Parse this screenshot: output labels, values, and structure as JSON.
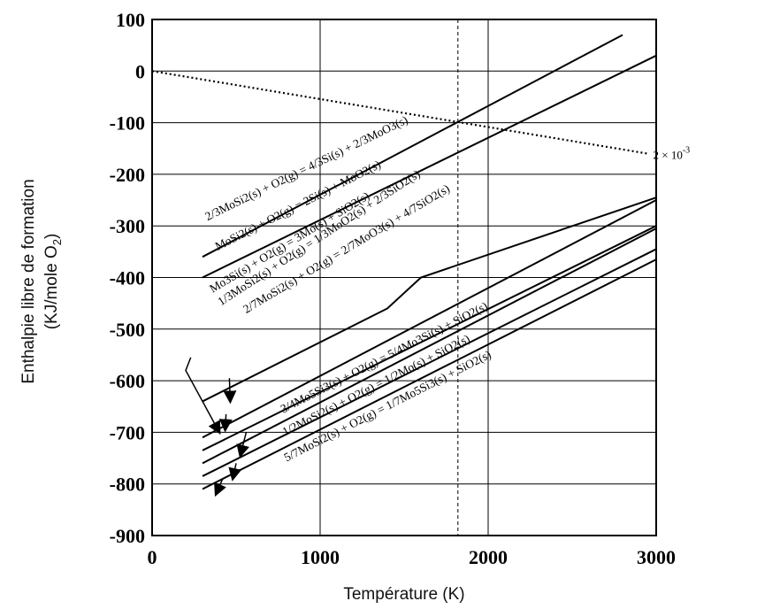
{
  "chart_data": {
    "type": "line",
    "title": "",
    "xlabel": "Température (K)",
    "ylabel_line1": "Enthalpie libre de formation",
    "ylabel_line2_prefix": "(KJ/mole O",
    "ylabel_line2_sub": "2",
    "ylabel_line2_suffix": ")",
    "xlim": [
      0,
      3000
    ],
    "ylim": [
      -900,
      100
    ],
    "xticks": [
      0,
      1000,
      2000,
      3000
    ],
    "yticks": [
      100,
      0,
      -100,
      -200,
      -300,
      -400,
      -500,
      -600,
      -700,
      -800,
      -900
    ],
    "grid": true,
    "vline_x": 1820,
    "dotted_line": {
      "label": "2 × 10",
      "label_exp": "-3",
      "points": [
        [
          0,
          0
        ],
        [
          2950,
          -160
        ]
      ]
    },
    "series": [
      {
        "name": "2/3MoSi2(s) + O2(g) = 4/3Si(s) + 2/3MoO3(s)",
        "points": [
          [
            300,
            -360
          ],
          [
            2800,
            70
          ]
        ]
      },
      {
        "name": "MoSi2(s) + O2(g) = 2Si(s) + MoO2(s)",
        "points": [
          [
            300,
            -400
          ],
          [
            3000,
            30
          ]
        ]
      },
      {
        "name": "Mo3Si(s) + O2(g) = 3Mo(s) + SiO2(s)",
        "points": [
          [
            300,
            -640
          ],
          [
            1400,
            -460
          ],
          [
            1600,
            -400
          ],
          [
            3000,
            -245
          ]
        ]
      },
      {
        "name": "1/3MoSi2(s) + O2(g) = 1/3MoO2(s) + 2/3SiO2(s)",
        "points": [
          [
            300,
            -710
          ],
          [
            3000,
            -250
          ]
        ]
      },
      {
        "name": "2/7MoSi2(s) + O2(g) = 2/7MoO3(s) + 4/7SiO2(s)",
        "points": [
          [
            300,
            -735
          ],
          [
            3000,
            -300
          ]
        ]
      },
      {
        "name": "3/4Mo5Si3(s) + O2(g) = 5/4Mo3Si(s) + SiO2(s)",
        "points": [
          [
            300,
            -760
          ],
          [
            3000,
            -305
          ]
        ]
      },
      {
        "name": "1/2MoSi2(s) + O2(g) = 1/2Mo(s) + SiO2(s)",
        "points": [
          [
            300,
            -785
          ],
          [
            3000,
            -345
          ]
        ]
      },
      {
        "name": "5/7MoSi2(s) + O2(g) = 1/7Mo5Si3(s) + SiO2(s)",
        "points": [
          [
            300,
            -810
          ],
          [
            3000,
            -365
          ]
        ]
      }
    ]
  }
}
